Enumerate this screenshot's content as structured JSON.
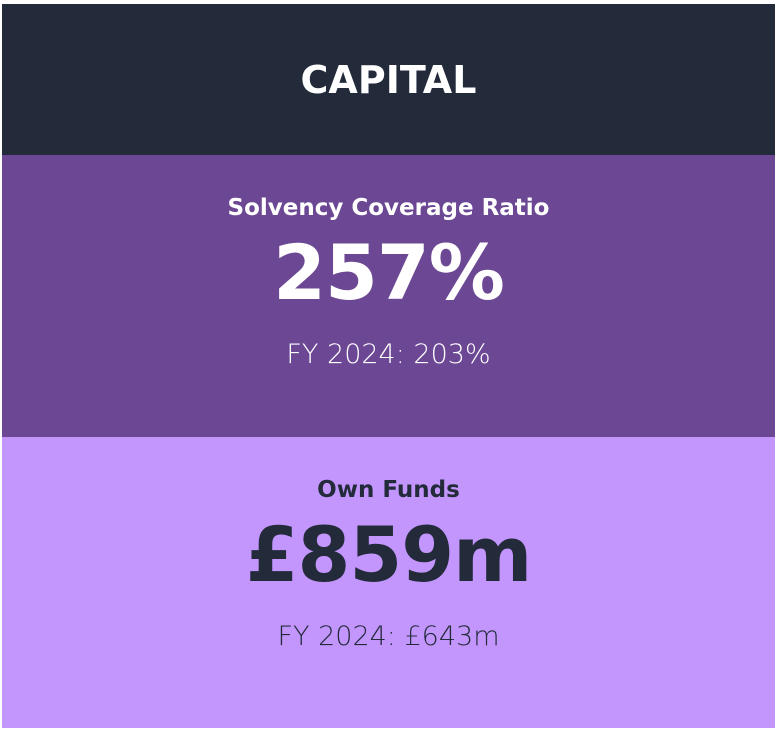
{
  "header": {
    "title": "CAPITAL"
  },
  "panels": [
    {
      "label": "Solvency Coverage Ratio",
      "value": "257%",
      "comparison": "FY 2024: 203%"
    },
    {
      "label": "Own Funds",
      "value": "£859m",
      "comparison": "FY 2024: £643m"
    }
  ]
}
